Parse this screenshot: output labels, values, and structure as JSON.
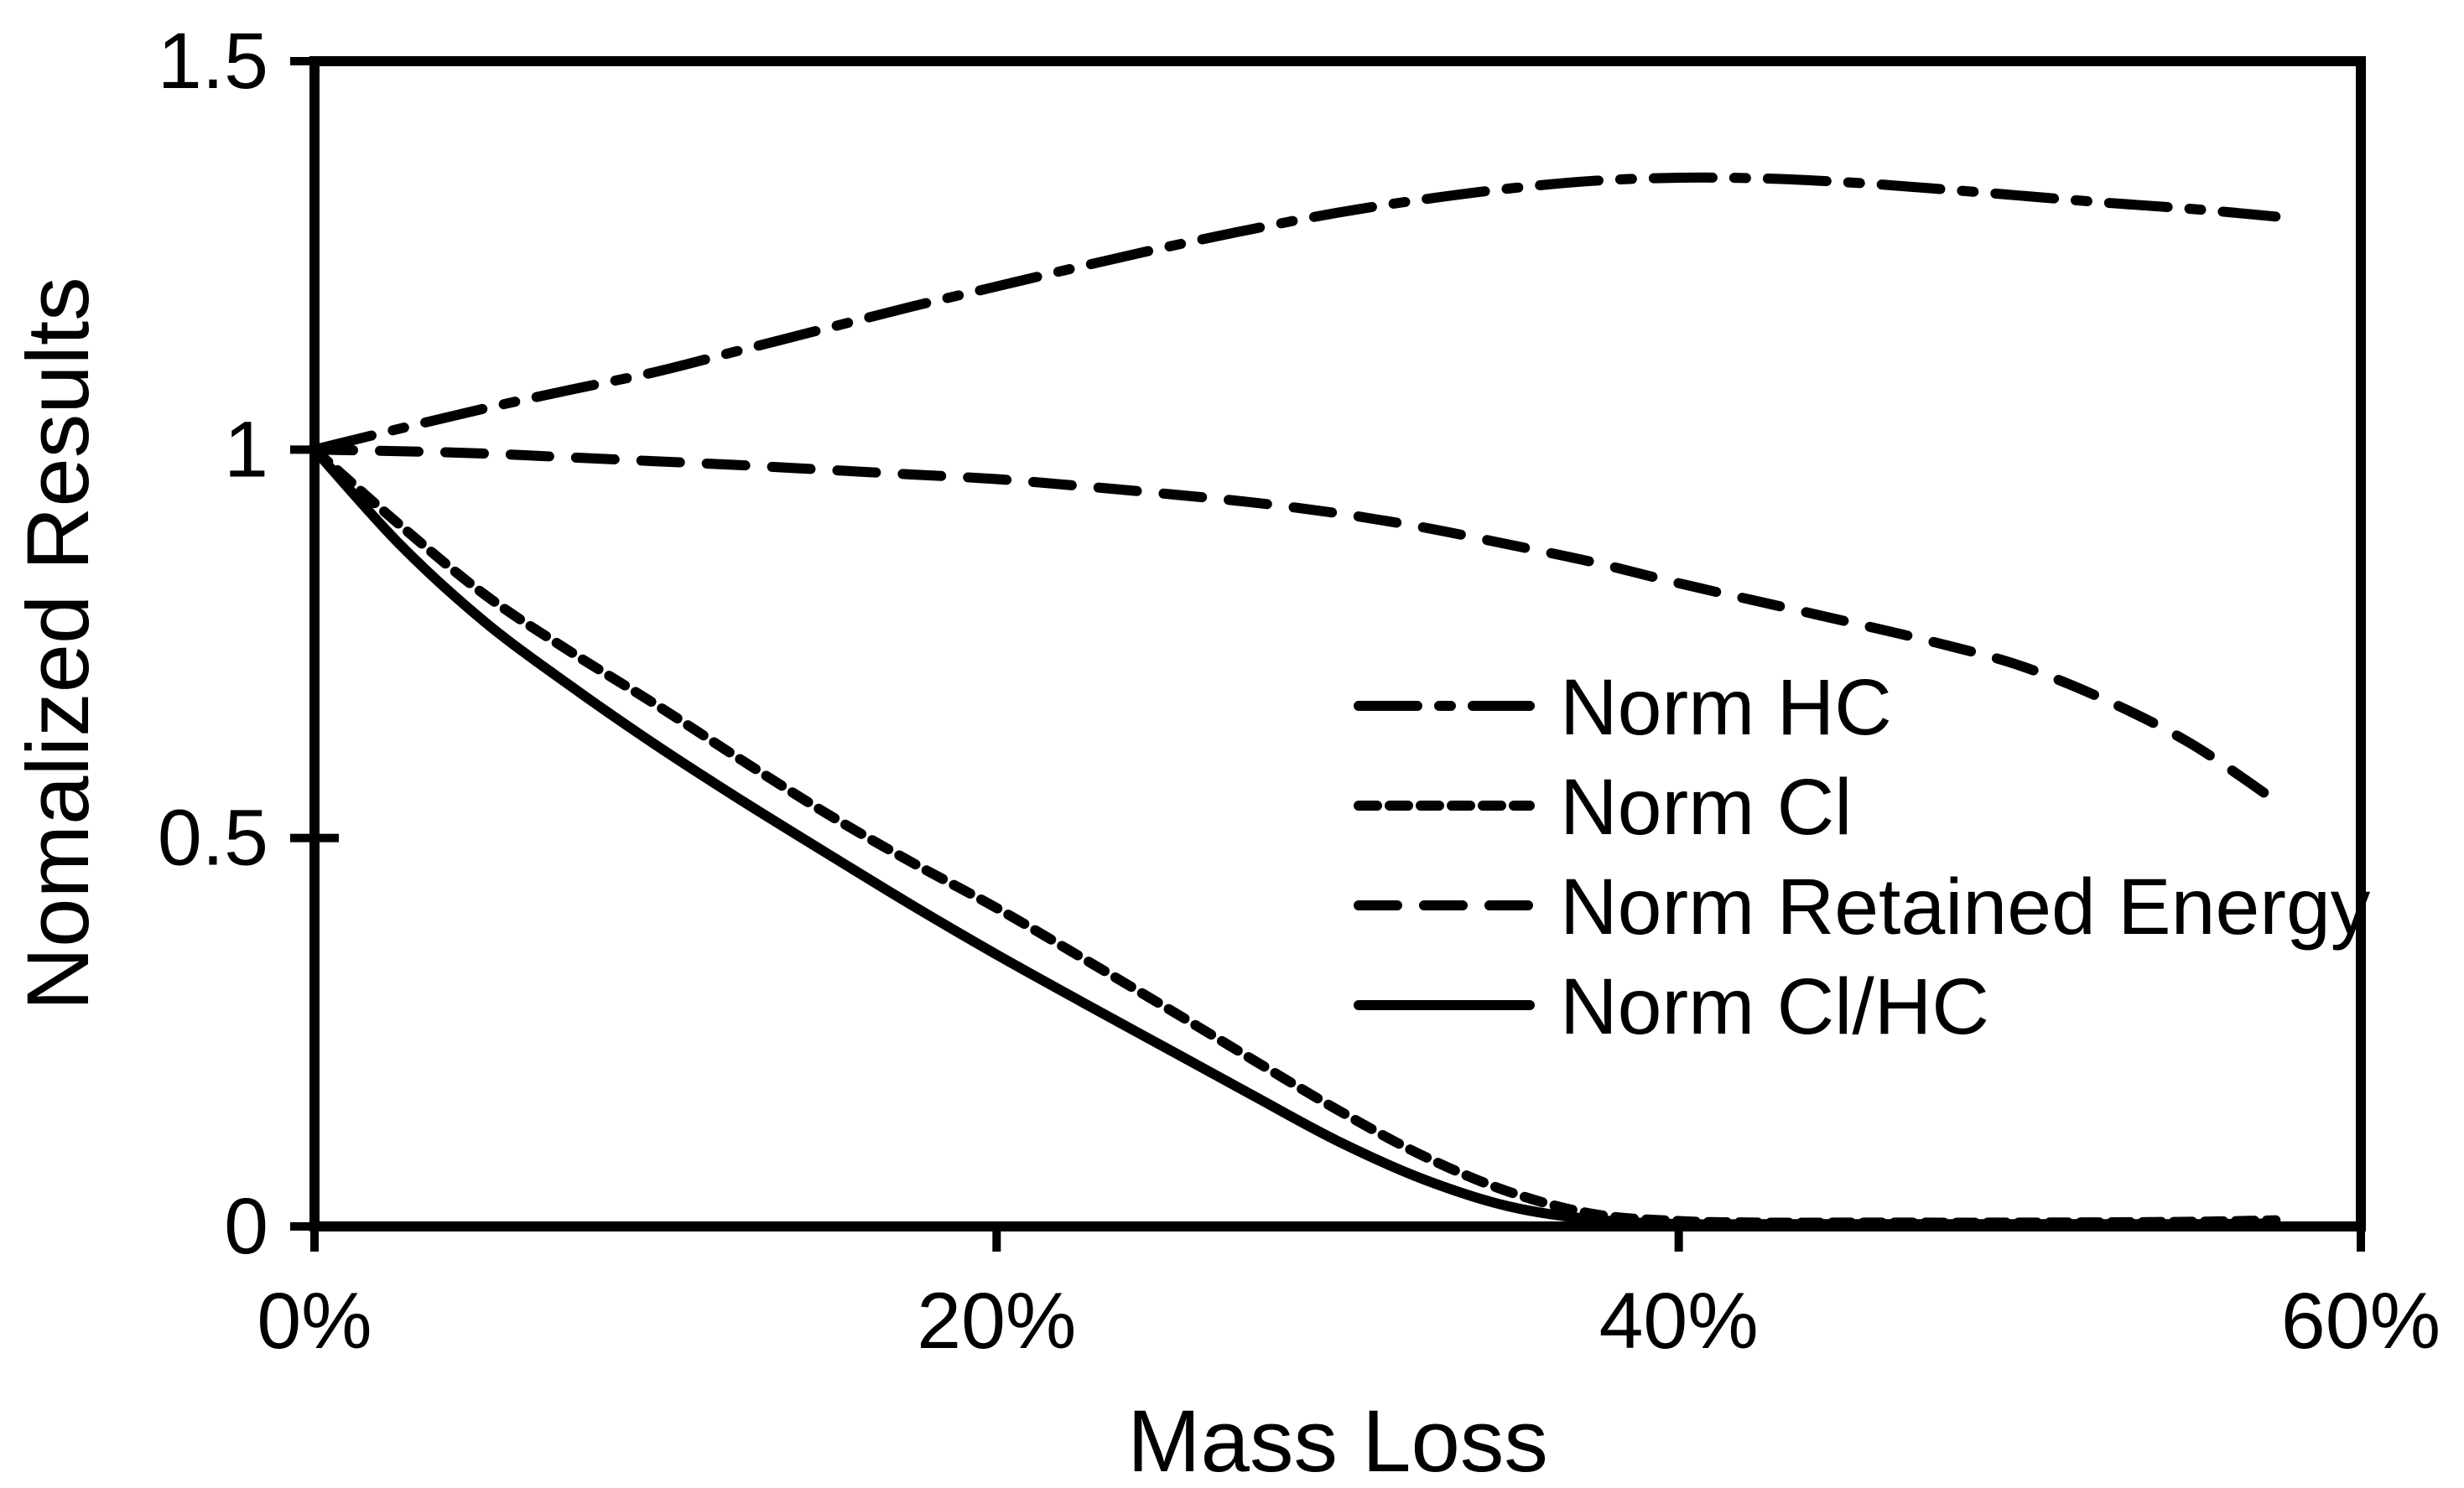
{
  "chart_data": {
    "type": "line",
    "title": "",
    "xlabel": "Mass Loss",
    "ylabel": "Nomalized Results",
    "xlim": [
      0,
      60
    ],
    "ylim": [
      0,
      1.5
    ],
    "x_unit": "percent mass loss",
    "grid": false,
    "legend_position": "inside-right",
    "background_color": "#ffffff",
    "line_color": "#000000",
    "xticks": [
      {
        "value": 0,
        "label": "0%"
      },
      {
        "value": 20,
        "label": "20%"
      },
      {
        "value": 40,
        "label": "40%"
      },
      {
        "value": 60,
        "label": "60%"
      }
    ],
    "yticks": [
      {
        "value": 0,
        "label": "0"
      },
      {
        "value": 0.5,
        "label": "0.5"
      },
      {
        "value": 1,
        "label": "1"
      },
      {
        "value": 1.5,
        "label": "1.5"
      }
    ],
    "series": [
      {
        "name": "Norm HC",
        "style": "dashdot",
        "points": [
          [
            0,
            1.0
          ],
          [
            2.5,
            1.027
          ],
          [
            5,
            1.053
          ],
          [
            7.5,
            1.077
          ],
          [
            10,
            1.1
          ],
          [
            12.5,
            1.128
          ],
          [
            15,
            1.156
          ],
          [
            17.5,
            1.184
          ],
          [
            20,
            1.21
          ],
          [
            22.5,
            1.236
          ],
          [
            25,
            1.261
          ],
          [
            27.5,
            1.284
          ],
          [
            30,
            1.305
          ],
          [
            32.5,
            1.322
          ],
          [
            35,
            1.336
          ],
          [
            37.5,
            1.346
          ],
          [
            40,
            1.35
          ],
          [
            42.5,
            1.349
          ],
          [
            45,
            1.344
          ],
          [
            47.5,
            1.336
          ],
          [
            50,
            1.327
          ],
          [
            52.5,
            1.318
          ],
          [
            55,
            1.31
          ],
          [
            57.5,
            1.3
          ]
        ]
      },
      {
        "name": "Norm Cl",
        "style": "dense-dash",
        "points": [
          [
            0,
            1.0
          ],
          [
            2.5,
            0.903
          ],
          [
            5,
            0.813
          ],
          [
            7.5,
            0.74
          ],
          [
            10,
            0.672
          ],
          [
            12.5,
            0.601
          ],
          [
            15,
            0.532
          ],
          [
            17.5,
            0.469
          ],
          [
            20,
            0.41
          ],
          [
            22.5,
            0.346
          ],
          [
            25,
            0.281
          ],
          [
            27.5,
            0.215
          ],
          [
            30,
            0.15
          ],
          [
            32.5,
            0.091
          ],
          [
            35,
            0.045
          ],
          [
            37.5,
            0.016
          ],
          [
            40,
            0.007
          ],
          [
            42.5,
            0.005
          ],
          [
            45,
            0.005
          ],
          [
            50,
            0.005
          ],
          [
            55,
            0.006
          ],
          [
            57.5,
            0.008
          ]
        ]
      },
      {
        "name": "Norm Retained Energy",
        "style": "dash",
        "points": [
          [
            0,
            1.0
          ],
          [
            2.5,
            0.998
          ],
          [
            5,
            0.995
          ],
          [
            7.5,
            0.99
          ],
          [
            10,
            0.985
          ],
          [
            12.5,
            0.98
          ],
          [
            15,
            0.974
          ],
          [
            17.5,
            0.968
          ],
          [
            20,
            0.962
          ],
          [
            22.5,
            0.953
          ],
          [
            25,
            0.943
          ],
          [
            27.5,
            0.932
          ],
          [
            30,
            0.918
          ],
          [
            32.5,
            0.9
          ],
          [
            35,
            0.878
          ],
          [
            37.5,
            0.855
          ],
          [
            40,
            0.828
          ],
          [
            42.5,
            0.803
          ],
          [
            45,
            0.778
          ],
          [
            47.5,
            0.752
          ],
          [
            50,
            0.722
          ],
          [
            52.5,
            0.678
          ],
          [
            55,
            0.622
          ],
          [
            57.5,
            0.548
          ]
        ]
      },
      {
        "name": "Norm Cl/HC",
        "style": "solid",
        "points": [
          [
            0,
            1.0
          ],
          [
            2.5,
            0.878
          ],
          [
            5,
            0.778
          ],
          [
            7.5,
            0.696
          ],
          [
            10,
            0.62
          ],
          [
            12.5,
            0.549
          ],
          [
            15,
            0.481
          ],
          [
            17.5,
            0.414
          ],
          [
            20,
            0.35
          ],
          [
            22.5,
            0.289
          ],
          [
            25,
            0.229
          ],
          [
            27.5,
            0.169
          ],
          [
            30,
            0.11
          ],
          [
            32.5,
            0.061
          ],
          [
            35,
            0.026
          ],
          [
            37.5,
            0.009
          ],
          [
            40,
            0.003
          ],
          [
            42.5,
            0.003
          ],
          [
            45,
            0.003
          ],
          [
            50,
            0.003
          ],
          [
            55,
            0.003
          ],
          [
            57.5,
            0.004
          ]
        ]
      }
    ]
  }
}
